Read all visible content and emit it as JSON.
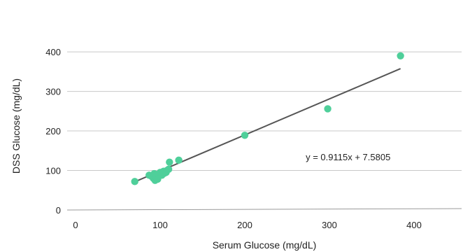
{
  "chart_data": {
    "type": "scatter",
    "xlabel": "Serum Glucose (mg/dL)",
    "ylabel": "DSS Glucose (mg/dL)",
    "xlim": [
      -12,
      460
    ],
    "ylim": [
      0,
      425
    ],
    "x_ticks": [
      0,
      100,
      200,
      300,
      400
    ],
    "y_ticks": [
      0,
      100,
      200,
      300,
      400
    ],
    "grid": true,
    "colors": {
      "points": "#4fcf9a",
      "trendline": "#555555",
      "grid": "#c8c8c8"
    },
    "points": [
      {
        "x": 70,
        "y": 72
      },
      {
        "x": 87,
        "y": 88
      },
      {
        "x": 90,
        "y": 85
      },
      {
        "x": 92,
        "y": 80
      },
      {
        "x": 93,
        "y": 92
      },
      {
        "x": 94,
        "y": 75
      },
      {
        "x": 95,
        "y": 84
      },
      {
        "x": 97,
        "y": 78
      },
      {
        "x": 98,
        "y": 90
      },
      {
        "x": 100,
        "y": 95
      },
      {
        "x": 102,
        "y": 88
      },
      {
        "x": 104,
        "y": 98
      },
      {
        "x": 105,
        "y": 93
      },
      {
        "x": 107,
        "y": 95
      },
      {
        "x": 108,
        "y": 100
      },
      {
        "x": 110,
        "y": 103
      },
      {
        "x": 111,
        "y": 121
      },
      {
        "x": 122,
        "y": 126
      },
      {
        "x": 200,
        "y": 189
      },
      {
        "x": 298,
        "y": 256
      },
      {
        "x": 384,
        "y": 390
      }
    ],
    "trendline": {
      "slope": 0.9115,
      "intercept": 7.5805,
      "x_range": [
        72,
        384
      ],
      "equation": "y = 0.9115x + 7.5805",
      "equation_anchor": {
        "x": 272,
        "y": 135
      }
    }
  }
}
